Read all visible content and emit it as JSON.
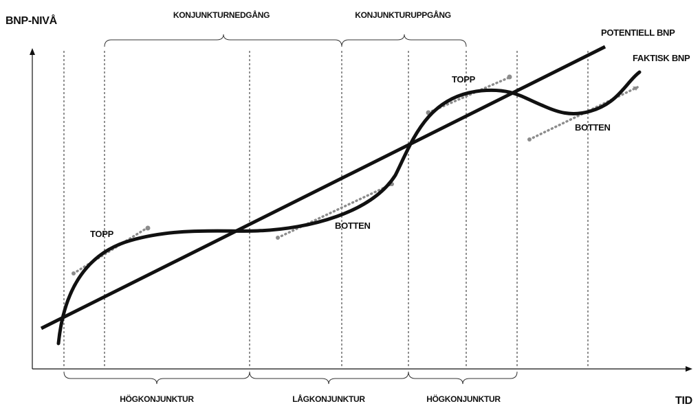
{
  "axes": {
    "y_label": "BNP-NIVÅ",
    "x_label": "TID"
  },
  "top_phases": {
    "downturn": "KONJUNKTURNEDGÅNG",
    "upturn": "KONJUNKTURUPPGÅNG"
  },
  "bottom_phases": {
    "boom_1": "HÖGKONJUNKTUR",
    "recession": "LÅGKONJUNKTUR",
    "boom_2": "HÖGKONJUNKTUR"
  },
  "series": {
    "potential": "POTENTIELL BNP",
    "actual": "FAKTISK BNP"
  },
  "points": {
    "peak_1": "TOPP",
    "trough_1": "BOTTEN",
    "peak_2": "TOPP",
    "trough_2": "BOTTEN"
  },
  "colors": {
    "curve": "#111111",
    "tangent": "#8c8c8c",
    "guide": "#222222"
  }
}
